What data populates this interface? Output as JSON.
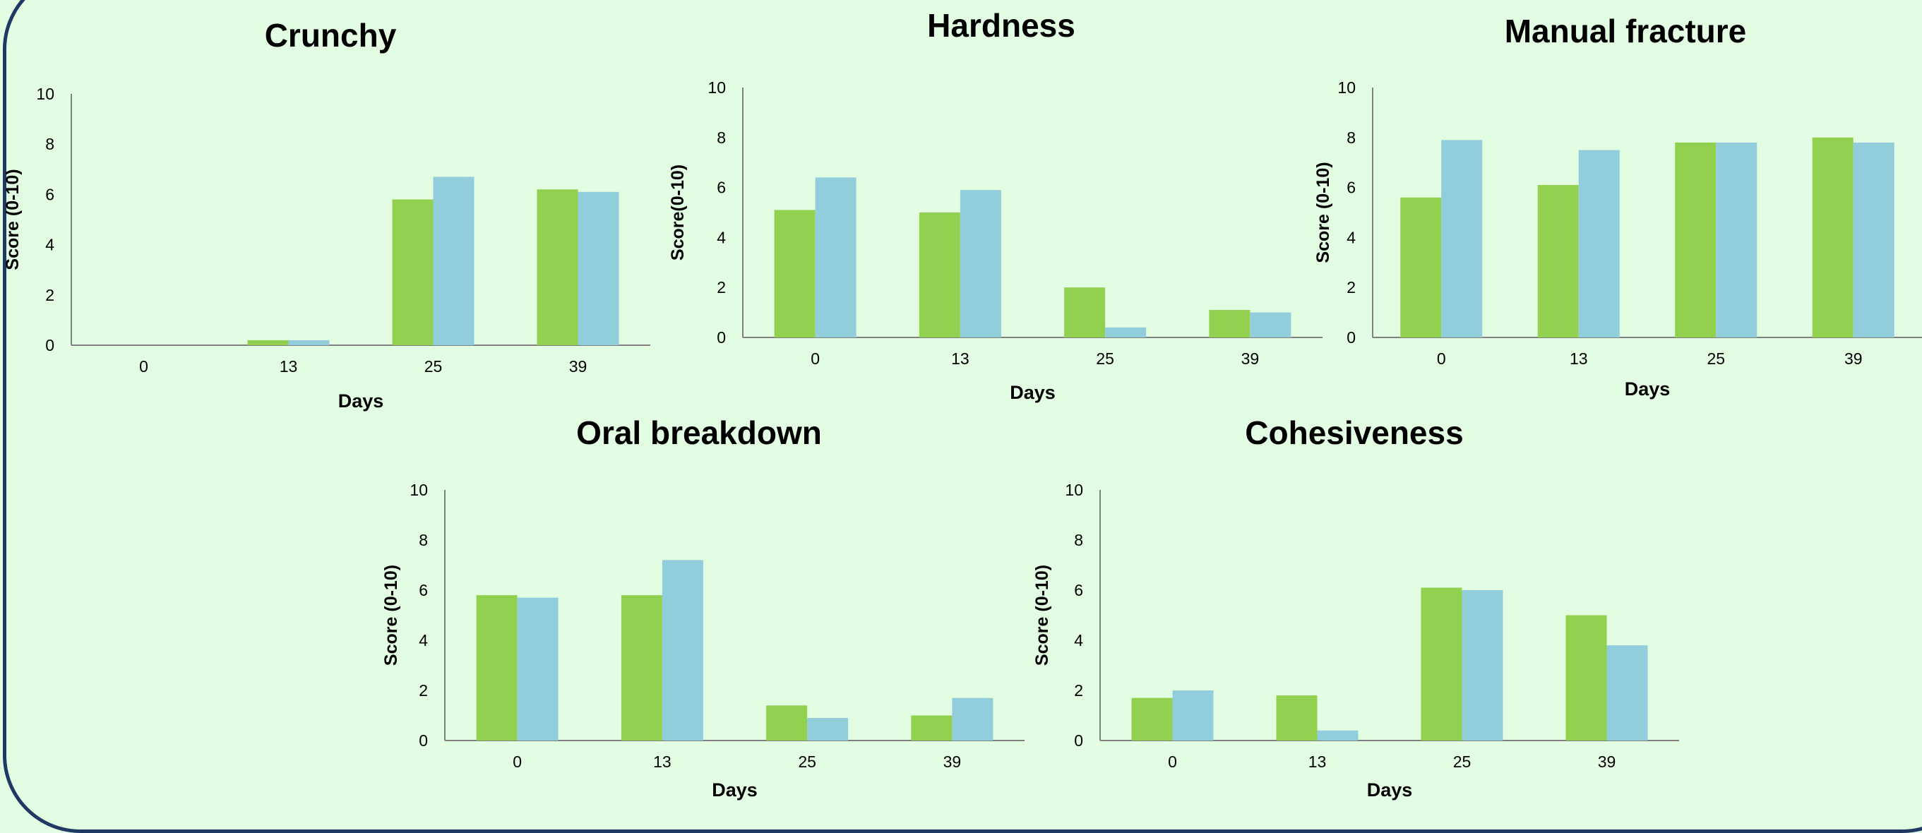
{
  "chart_data": [
    {
      "type": "bar",
      "title": "Crunchy",
      "xlabel": "Days",
      "ylabel": "Score (0-10)",
      "ylim": [
        0,
        10
      ],
      "yticks": [
        0,
        2,
        4,
        6,
        8,
        10
      ],
      "categories": [
        "0",
        "13",
        "25",
        "39"
      ],
      "series": [
        {
          "color": "#92d050",
          "values": [
            0,
            0.2,
            5.8,
            6.2
          ]
        },
        {
          "color": "#92cddc",
          "values": [
            0,
            0.2,
            6.7,
            6.1
          ]
        }
      ]
    },
    {
      "type": "bar",
      "title": "Hardness",
      "xlabel": "Days",
      "ylabel": "Score(0-10)",
      "ylim": [
        0,
        10
      ],
      "yticks": [
        0,
        2,
        4,
        6,
        8,
        10
      ],
      "categories": [
        "0",
        "13",
        "25",
        "39"
      ],
      "series": [
        {
          "color": "#92d050",
          "values": [
            5.1,
            5.0,
            2.0,
            1.1
          ]
        },
        {
          "color": "#92cddc",
          "values": [
            6.4,
            5.9,
            0.4,
            1.0
          ]
        }
      ]
    },
    {
      "type": "bar",
      "title": "Manual fracture",
      "xlabel": "Days",
      "ylabel": "Score (0-10)",
      "ylim": [
        0,
        10
      ],
      "yticks": [
        0,
        2,
        4,
        6,
        8,
        10
      ],
      "categories": [
        "0",
        "13",
        "25",
        "39"
      ],
      "series": [
        {
          "color": "#92d050",
          "values": [
            5.6,
            6.1,
            7.8,
            8.0
          ]
        },
        {
          "color": "#92cddc",
          "values": [
            7.9,
            7.5,
            7.8,
            7.8
          ]
        }
      ]
    },
    {
      "type": "bar",
      "title": "Oral breakdown",
      "xlabel": "Days",
      "ylabel": "Score (0-10)",
      "ylim": [
        0,
        10
      ],
      "yticks": [
        0,
        2,
        4,
        6,
        8,
        10
      ],
      "categories": [
        "0",
        "13",
        "25",
        "39"
      ],
      "series": [
        {
          "color": "#92d050",
          "values": [
            5.8,
            5.8,
            1.4,
            1.0
          ]
        },
        {
          "color": "#92cddc",
          "values": [
            5.7,
            7.2,
            0.9,
            1.7
          ]
        }
      ]
    },
    {
      "type": "bar",
      "title": "Cohesiveness",
      "xlabel": "Days",
      "ylabel": "Score (0-10)",
      "ylim": [
        0,
        10
      ],
      "yticks": [
        0,
        2,
        4,
        6,
        8,
        10
      ],
      "categories": [
        "0",
        "13",
        "25",
        "39"
      ],
      "series": [
        {
          "color": "#92d050",
          "values": [
            1.7,
            1.8,
            6.1,
            5.0
          ]
        },
        {
          "color": "#92cddc",
          "values": [
            2.0,
            0.4,
            6.0,
            3.8
          ]
        }
      ]
    }
  ]
}
